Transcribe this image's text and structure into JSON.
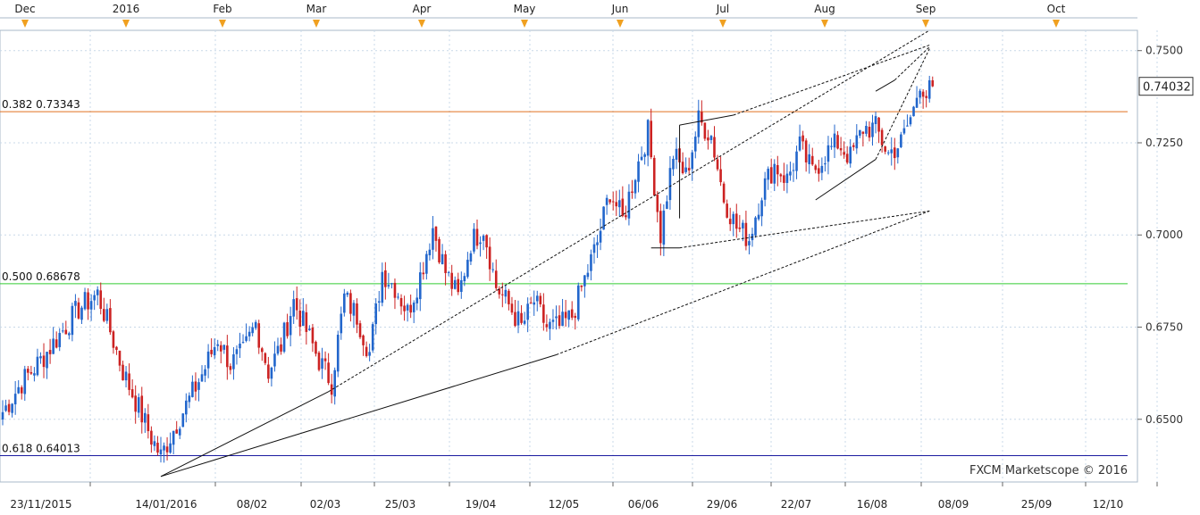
{
  "chart_data": {
    "type": "candlestick",
    "title": "",
    "watermark": "FXCM Marketscope © 2016",
    "ylim": [
      0.633,
      0.7555
    ],
    "y_ticks": [
      "0.7500",
      "0.7250",
      "0.7000",
      "0.6750",
      "0.6500"
    ],
    "y_tick_values": [
      0.75,
      0.725,
      0.7,
      0.675,
      0.65
    ],
    "last_price": "0.74032",
    "last_price_value": 0.74032,
    "month_markers": [
      "Dec",
      "2016",
      "Feb",
      "Mar",
      "Apr",
      "May",
      "Jun",
      "Jul",
      "Aug",
      "Sep",
      "Oct"
    ],
    "x_labels": [
      "23/11/2015",
      "14/01/2016",
      "08/02",
      "02/03",
      "25/03",
      "19/04",
      "12/05",
      "06/06",
      "29/06",
      "22/07",
      "16/08",
      "08/09",
      "25/09",
      "12/10"
    ],
    "fib_levels": [
      {
        "label": "0.382",
        "value_text": "0.73343",
        "value": 0.73343,
        "color": "#e07020"
      },
      {
        "label": "0.500",
        "value_text": "0.68678",
        "value": 0.68678,
        "color": "#33cc33"
      },
      {
        "label": "0.618",
        "value_text": "0.64013",
        "value": 0.64013,
        "color": "#1a1aa0"
      }
    ],
    "colors": {
      "up": "#2266cc",
      "down": "#cc2222",
      "grid": "#c8d8e8",
      "marker": "#f0a020"
    },
    "close_waypoints": [
      [
        0,
        0.652
      ],
      [
        6,
        0.66
      ],
      [
        12,
        0.666
      ],
      [
        18,
        0.673
      ],
      [
        24,
        0.68
      ],
      [
        30,
        0.684
      ],
      [
        34,
        0.674
      ],
      [
        38,
        0.663
      ],
      [
        43,
        0.653
      ],
      [
        47,
        0.645
      ],
      [
        50,
        0.64
      ],
      [
        55,
        0.649
      ],
      [
        60,
        0.657
      ],
      [
        64,
        0.664
      ],
      [
        68,
        0.672
      ],
      [
        72,
        0.665
      ],
      [
        76,
        0.668
      ],
      [
        80,
        0.676
      ],
      [
        84,
        0.663
      ],
      [
        88,
        0.67
      ],
      [
        92,
        0.682
      ],
      [
        96,
        0.674
      ],
      [
        100,
        0.666
      ],
      [
        104,
        0.66
      ],
      [
        108,
        0.683
      ],
      [
        112,
        0.678
      ],
      [
        116,
        0.668
      ],
      [
        120,
        0.69
      ],
      [
        124,
        0.686
      ],
      [
        128,
        0.679
      ],
      [
        132,
        0.689
      ],
      [
        136,
        0.702
      ],
      [
        140,
        0.69
      ],
      [
        144,
        0.683
      ],
      [
        148,
        0.698
      ],
      [
        152,
        0.702
      ],
      [
        156,
        0.686
      ],
      [
        160,
        0.681
      ],
      [
        164,
        0.675
      ],
      [
        168,
        0.682
      ],
      [
        172,
        0.675
      ],
      [
        176,
        0.675
      ],
      [
        180,
        0.678
      ],
      [
        184,
        0.688
      ],
      [
        188,
        0.698
      ],
      [
        192,
        0.712
      ],
      [
        196,
        0.704
      ],
      [
        200,
        0.717
      ],
      [
        204,
        0.728
      ],
      [
        208,
        0.7
      ],
      [
        212,
        0.722
      ],
      [
        216,
        0.716
      ],
      [
        220,
        0.731
      ],
      [
        224,
        0.727
      ],
      [
        228,
        0.71
      ],
      [
        232,
        0.702
      ],
      [
        236,
        0.699
      ],
      [
        240,
        0.712
      ],
      [
        244,
        0.719
      ],
      [
        248,
        0.715
      ],
      [
        252,
        0.724
      ],
      [
        256,
        0.717
      ],
      [
        260,
        0.722
      ],
      [
        264,
        0.725
      ],
      [
        268,
        0.721
      ],
      [
        272,
        0.729
      ],
      [
        276,
        0.729
      ],
      [
        280,
        0.722
      ],
      [
        284,
        0.725
      ],
      [
        288,
        0.734
      ],
      [
        290,
        0.742
      ],
      [
        292,
        0.738
      ],
      [
        294,
        0.74
      ]
    ],
    "trendlines": [
      {
        "style": "solid",
        "from": [
          50,
          0.6345
        ],
        "to": [
          103,
          0.6575
        ]
      },
      {
        "style": "solid",
        "from": [
          50,
          0.6345
        ],
        "to": [
          175,
          0.6675
        ]
      },
      {
        "style": "dashed",
        "from": [
          103,
          0.6575
        ],
        "to": [
          293,
          0.7555
        ]
      },
      {
        "style": "dashed",
        "from": [
          175,
          0.6675
        ],
        "to": [
          293,
          0.7065
        ]
      },
      {
        "style": "solid",
        "from": [
          214,
          0.7298
        ],
        "to": [
          231,
          0.7325
        ]
      },
      {
        "style": "solid",
        "from": [
          214,
          0.7298
        ],
        "to": [
          214,
          0.7045
        ]
      },
      {
        "style": "solid",
        "from": [
          205,
          0.6965
        ],
        "to": [
          214,
          0.6965
        ]
      },
      {
        "style": "dashed",
        "from": [
          214,
          0.6965
        ],
        "to": [
          293,
          0.7065
        ]
      },
      {
        "style": "dashed",
        "from": [
          231,
          0.7325
        ],
        "to": [
          293,
          0.7515
        ]
      },
      {
        "style": "solid",
        "from": [
          257,
          0.7095
        ],
        "to": [
          276,
          0.7205
        ]
      },
      {
        "style": "dashed",
        "from": [
          276,
          0.7205
        ],
        "to": [
          293,
          0.7505
        ]
      },
      {
        "style": "solid",
        "from": [
          276,
          0.739
        ],
        "to": [
          282,
          0.742
        ]
      },
      {
        "style": "dashed",
        "from": [
          282,
          0.742
        ],
        "to": [
          293,
          0.751
        ]
      }
    ]
  }
}
